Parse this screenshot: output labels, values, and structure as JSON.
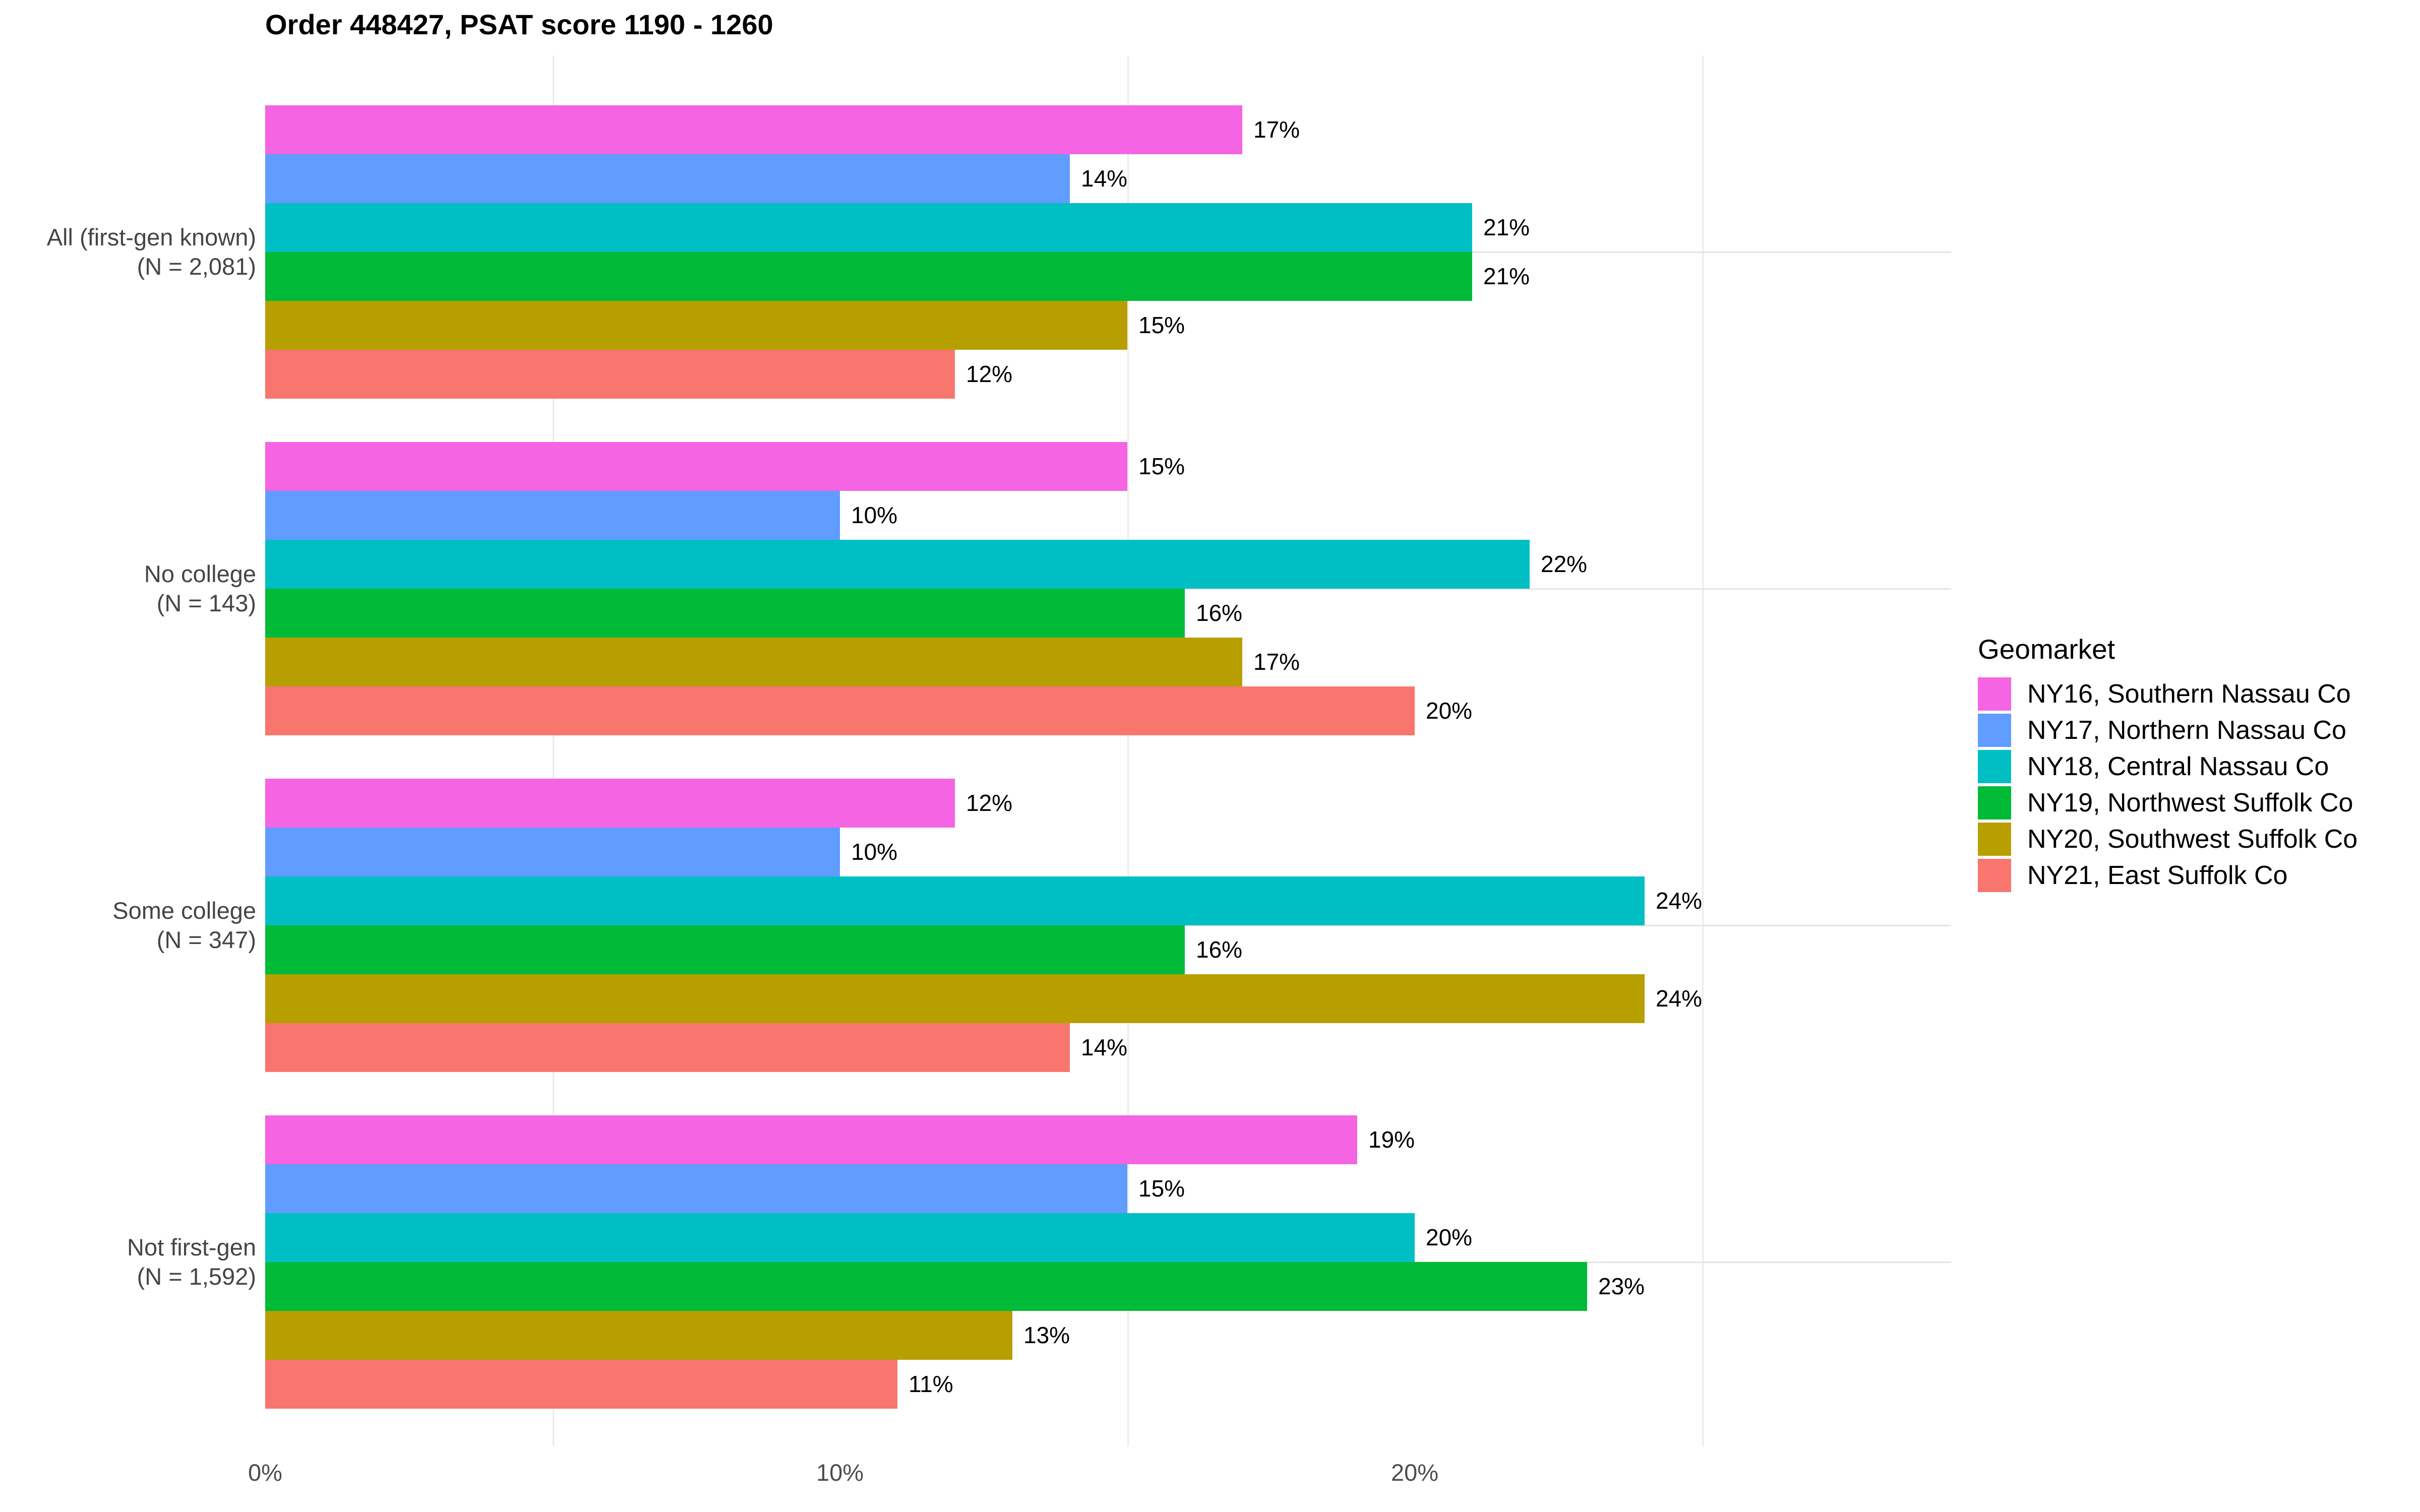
{
  "chart_data": {
    "type": "bar",
    "orientation": "horizontal",
    "title": "Order 448427, PSAT score 1190 - 1260",
    "categories": [
      {
        "label": "All (first-gen known)",
        "n_label": "(N = 2,081)"
      },
      {
        "label": "No college",
        "n_label": "(N = 143)"
      },
      {
        "label": "Some college",
        "n_label": "(N = 347)"
      },
      {
        "label": "Not first-gen",
        "n_label": "(N = 1,592)"
      }
    ],
    "series": [
      {
        "name": "NY16, Southern Nassau Co",
        "color": "#F564E3",
        "values": [
          17,
          15,
          12,
          19
        ]
      },
      {
        "name": "NY17, Northern Nassau Co",
        "color": "#619CFF",
        "values": [
          14,
          10,
          10,
          15
        ]
      },
      {
        "name": "NY18, Central Nassau Co",
        "color": "#00BFC4",
        "values": [
          21,
          22,
          24,
          20
        ]
      },
      {
        "name": "NY19, Northwest Suffolk Co",
        "color": "#00BA38",
        "values": [
          21,
          16,
          16,
          23
        ]
      },
      {
        "name": "NY20, Southwest Suffolk Co",
        "color": "#B79F00",
        "values": [
          15,
          17,
          24,
          13
        ]
      },
      {
        "name": "NY21, East Suffolk Co",
        "color": "#F8766D",
        "values": [
          12,
          20,
          14,
          11
        ]
      }
    ],
    "value_suffix": "%",
    "x_axis": {
      "tick_labels": [
        "0%",
        "10%",
        "20%"
      ],
      "tick_values": [
        0,
        10,
        20
      ],
      "minor_tick_values": [
        5,
        15,
        25
      ],
      "range": [
        0,
        29.3
      ]
    },
    "legend": {
      "title": "Geomarket",
      "position": "right"
    },
    "grid": {
      "horizontal_major": true,
      "vertical_minor": true
    },
    "colors": {
      "background": "#FFFFFF",
      "axis_text": "#4D4D4D",
      "grid_minor": "#EBEBEB",
      "grid_major_y": "#E4E4E4"
    }
  }
}
